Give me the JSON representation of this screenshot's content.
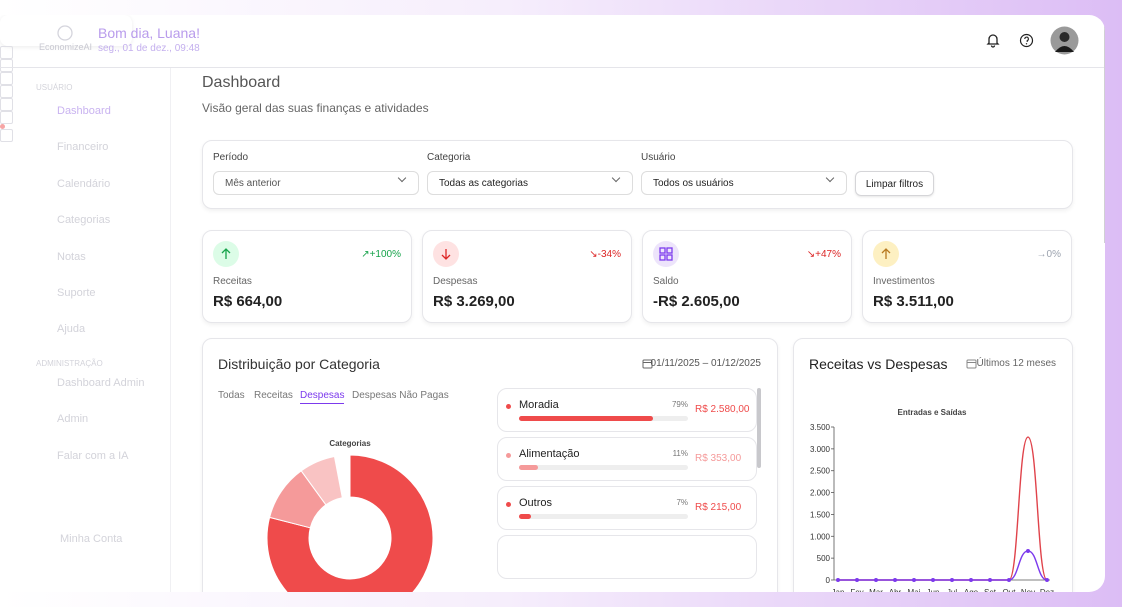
{
  "header": {
    "logo": "EconomizeAI",
    "greeting": "Bom dia, Luana!",
    "date": "seg., 01 de dez., 09:48"
  },
  "sidebar": {
    "sections": [
      {
        "title": "USUÁRIO",
        "items": [
          "Dashboard",
          "Financeiro",
          "Calendário",
          "Categorias",
          "Notas",
          "Suporte",
          "Ajuda"
        ]
      },
      {
        "title": "ADMINISTRAÇÃO",
        "items": [
          "Dashboard Admin",
          "Admin",
          "Falar com a IA"
        ]
      }
    ],
    "footer": "Minha Conta"
  },
  "page": {
    "title": "Dashboard",
    "subtitle": "Visão geral das suas finanças e atividades"
  },
  "filters": [
    {
      "label": "Período",
      "value": "Mês anterior"
    },
    {
      "label": "Categoria",
      "value": "Todas as categorias"
    },
    {
      "label": "Usuário",
      "value": "Todos os usuários"
    }
  ],
  "clear_button": "Limpar filtros",
  "kpis": [
    {
      "label": "Receitas",
      "value": "R$ 664,00",
      "change": "↗+100%",
      "color": "#16a34a",
      "icon_bg": "#dcfce7"
    },
    {
      "label": "Despesas",
      "value": "R$ 3.269,00",
      "change": "↘-34%",
      "color": "#dc2626",
      "icon_bg": "#fee2e2"
    },
    {
      "label": "Saldo",
      "value": "-R$ 2.605,00",
      "change": "↘+47%",
      "color": "#dc2626",
      "icon_bg": "#ede4fb"
    },
    {
      "label": "Investimentos",
      "value": "R$ 3.511,00",
      "change": "→0%",
      "color": "#9ca3af",
      "icon_bg": "#fdf0c2"
    }
  ],
  "distribution": {
    "title": "Distribuição por Categoria",
    "date_range": "01/11/2025 – 01/12/2025",
    "tabs": [
      "Todas",
      "Receitas",
      "Despesas",
      "Despesas Não Pagas"
    ],
    "active_tab": 2
  },
  "trend": {
    "title": "Receitas vs Despesas",
    "period": "Últimos 12 meses"
  },
  "chart_data": [
    {
      "type": "pie",
      "title": "Categorias",
      "categories": [
        "Moradia",
        "Alimentação",
        "Outros"
      ],
      "values": [
        79,
        11,
        7
      ],
      "value_labels": [
        "79%",
        "11%",
        "7%"
      ],
      "amounts": [
        "R$ 2.580,00",
        "R$ 353,00",
        "R$ 215,00"
      ],
      "colors": [
        "#ef4b4b",
        "#f59a9a",
        "#f9c3c3"
      ]
    },
    {
      "type": "line",
      "title": "Entradas e Saídas",
      "categories": [
        "Jan",
        "Fev",
        "Mar",
        "Abr",
        "Mai",
        "Jun",
        "Jul",
        "Ago",
        "Set",
        "Out",
        "Nov",
        "Dez"
      ],
      "series": [
        {
          "color": "#e0434b",
          "values": [
            0,
            0,
            0,
            0,
            0,
            0,
            0,
            0,
            0,
            0,
            3269,
            0
          ]
        },
        {
          "color": "#7c3aed",
          "values": [
            0,
            0,
            0,
            0,
            0,
            0,
            0,
            0,
            0,
            0,
            664,
            0
          ]
        }
      ],
      "ylim": [
        0,
        3500
      ],
      "yticks": [
        0,
        500,
        {
          "value": 1000,
          "label": "1.000"
        },
        {
          "value": 1500,
          "label": "1.500"
        },
        {
          "value": 2000,
          "label": "2.000"
        },
        {
          "value": 2500,
          "label": "2.500"
        },
        {
          "value": 3000,
          "label": "3.000"
        },
        {
          "value": 3500,
          "label": "3.500"
        }
      ]
    }
  ]
}
